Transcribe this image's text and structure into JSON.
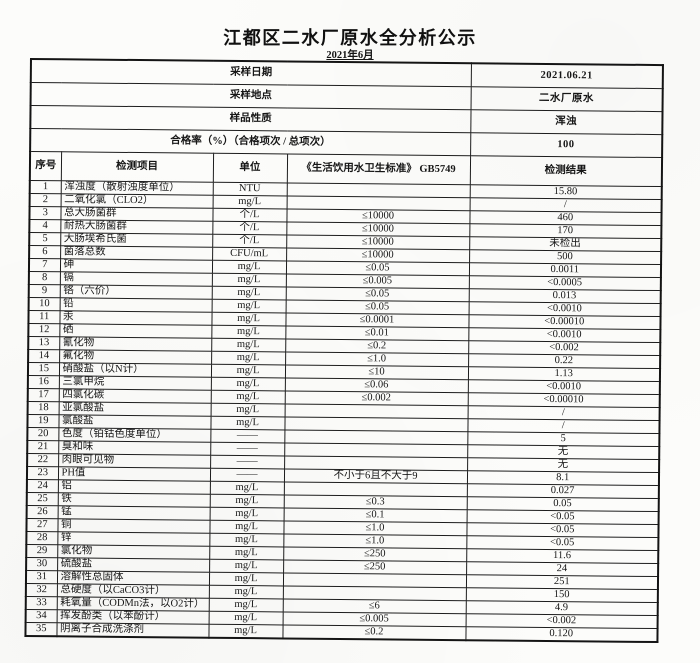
{
  "page": {
    "title": "江都区二水厂原水全分析公示",
    "subtitle": "2021年6月"
  },
  "colors": {
    "paper": "#fcfcfa",
    "ink": "#1d1d1d"
  },
  "info_rows": [
    {
      "label": "采样日期",
      "value": "2021.06.21"
    },
    {
      "label": "采样地点",
      "value": "二水厂原水"
    },
    {
      "label": "样品性质",
      "value": "浑浊"
    },
    {
      "label": "合格率（%）（合格项次 / 总项次）",
      "value": "100"
    }
  ],
  "table": {
    "headers": [
      "序号",
      "检测项目",
      "单位",
      "《生活饮用水卫生标准》 GB5749",
      "检测结果"
    ],
    "rows": [
      {
        "no": "1",
        "item": "浑浊度（散射浊度单位）",
        "unit": "NTU",
        "standard": "",
        "result": "15.80"
      },
      {
        "no": "2",
        "item": "二氧化氯（CLO2）",
        "unit": "mg/L",
        "standard": "",
        "result": "/"
      },
      {
        "no": "3",
        "item": "总大肠菌群",
        "unit": "个/L",
        "standard": "≤10000",
        "result": "460"
      },
      {
        "no": "4",
        "item": "耐热大肠菌群",
        "unit": "个/L",
        "standard": "≤10000",
        "result": "170"
      },
      {
        "no": "5",
        "item": "大肠埃希氏菌",
        "unit": "个/L",
        "standard": "≤10000",
        "result": "未检出"
      },
      {
        "no": "6",
        "item": "菌落总数",
        "unit": "CFU/mL",
        "standard": "≤10000",
        "result": "500"
      },
      {
        "no": "7",
        "item": "砷",
        "unit": "mg/L",
        "standard": "≤0.05",
        "result": "0.0011"
      },
      {
        "no": "8",
        "item": "镉",
        "unit": "mg/L",
        "standard": "≤0.005",
        "result": "<0.0005"
      },
      {
        "no": "9",
        "item": "铬（六价）",
        "unit": "mg/L",
        "standard": "≤0.05",
        "result": "0.013"
      },
      {
        "no": "10",
        "item": "铅",
        "unit": "mg/L",
        "standard": "≤0.05",
        "result": "<0.0010"
      },
      {
        "no": "11",
        "item": "汞",
        "unit": "mg/L",
        "standard": "≤0.0001",
        "result": "<0.00010"
      },
      {
        "no": "12",
        "item": "硒",
        "unit": "mg/L",
        "standard": "≤0.01",
        "result": "<0.0010"
      },
      {
        "no": "13",
        "item": "氰化物",
        "unit": "mg/L",
        "standard": "≤0.2",
        "result": "<0.002"
      },
      {
        "no": "14",
        "item": "氟化物",
        "unit": "mg/L",
        "standard": "≤1.0",
        "result": "0.22"
      },
      {
        "no": "15",
        "item": "硝酸盐（以N计）",
        "unit": "mg/L",
        "standard": "≤10",
        "result": "1.13"
      },
      {
        "no": "16",
        "item": "三氯甲烷",
        "unit": "mg/L",
        "standard": "≤0.06",
        "result": "<0.0010"
      },
      {
        "no": "17",
        "item": "四氯化碳",
        "unit": "mg/L",
        "standard": "≤0.002",
        "result": "<0.00010"
      },
      {
        "no": "18",
        "item": "亚氯酸盐",
        "unit": "mg/L",
        "standard": "",
        "result": "/"
      },
      {
        "no": "19",
        "item": "氯酸盐",
        "unit": "mg/L",
        "standard": "",
        "result": "/"
      },
      {
        "no": "20",
        "item": "色度（铂钴色度单位）",
        "unit": "——",
        "standard": "",
        "result": "5"
      },
      {
        "no": "21",
        "item": "臭和味",
        "unit": "——",
        "standard": "",
        "result": "无"
      },
      {
        "no": "22",
        "item": "肉眼可见物",
        "unit": "——",
        "standard": "",
        "result": "无"
      },
      {
        "no": "23",
        "item": "PH值",
        "unit": "——",
        "standard": "不小于6且不大于9",
        "result": "8.1"
      },
      {
        "no": "24",
        "item": "铝",
        "unit": "mg/L",
        "standard": "",
        "result": "0.027"
      },
      {
        "no": "25",
        "item": "铁",
        "unit": "mg/L",
        "standard": "≤0.3",
        "result": "0.05"
      },
      {
        "no": "26",
        "item": "锰",
        "unit": "mg/L",
        "standard": "≤0.1",
        "result": "<0.05"
      },
      {
        "no": "27",
        "item": "铜",
        "unit": "mg/L",
        "standard": "≤1.0",
        "result": "<0.05"
      },
      {
        "no": "28",
        "item": "锌",
        "unit": "mg/L",
        "standard": "≤1.0",
        "result": "<0.05"
      },
      {
        "no": "29",
        "item": "氯化物",
        "unit": "mg/L",
        "standard": "≤250",
        "result": "11.6"
      },
      {
        "no": "30",
        "item": "硫酸盐",
        "unit": "mg/L",
        "standard": "≤250",
        "result": "24"
      },
      {
        "no": "31",
        "item": "溶解性总固体",
        "unit": "mg/L",
        "standard": "",
        "result": "251"
      },
      {
        "no": "32",
        "item": "总硬度（以CaCO3计）",
        "unit": "mg/L",
        "standard": "",
        "result": "150"
      },
      {
        "no": "33",
        "item": "耗氧量（CODMn法，以O2计）",
        "unit": "mg/L",
        "standard": "≤6",
        "result": "4.9"
      },
      {
        "no": "34",
        "item": "挥发酚类（以苯酚计）",
        "unit": "mg/L",
        "standard": "≤0.005",
        "result": "<0.002"
      },
      {
        "no": "35",
        "item": "阴离子合成洗涤剂",
        "unit": "mg/L",
        "standard": "≤0.2",
        "result": "0.120"
      }
    ]
  }
}
